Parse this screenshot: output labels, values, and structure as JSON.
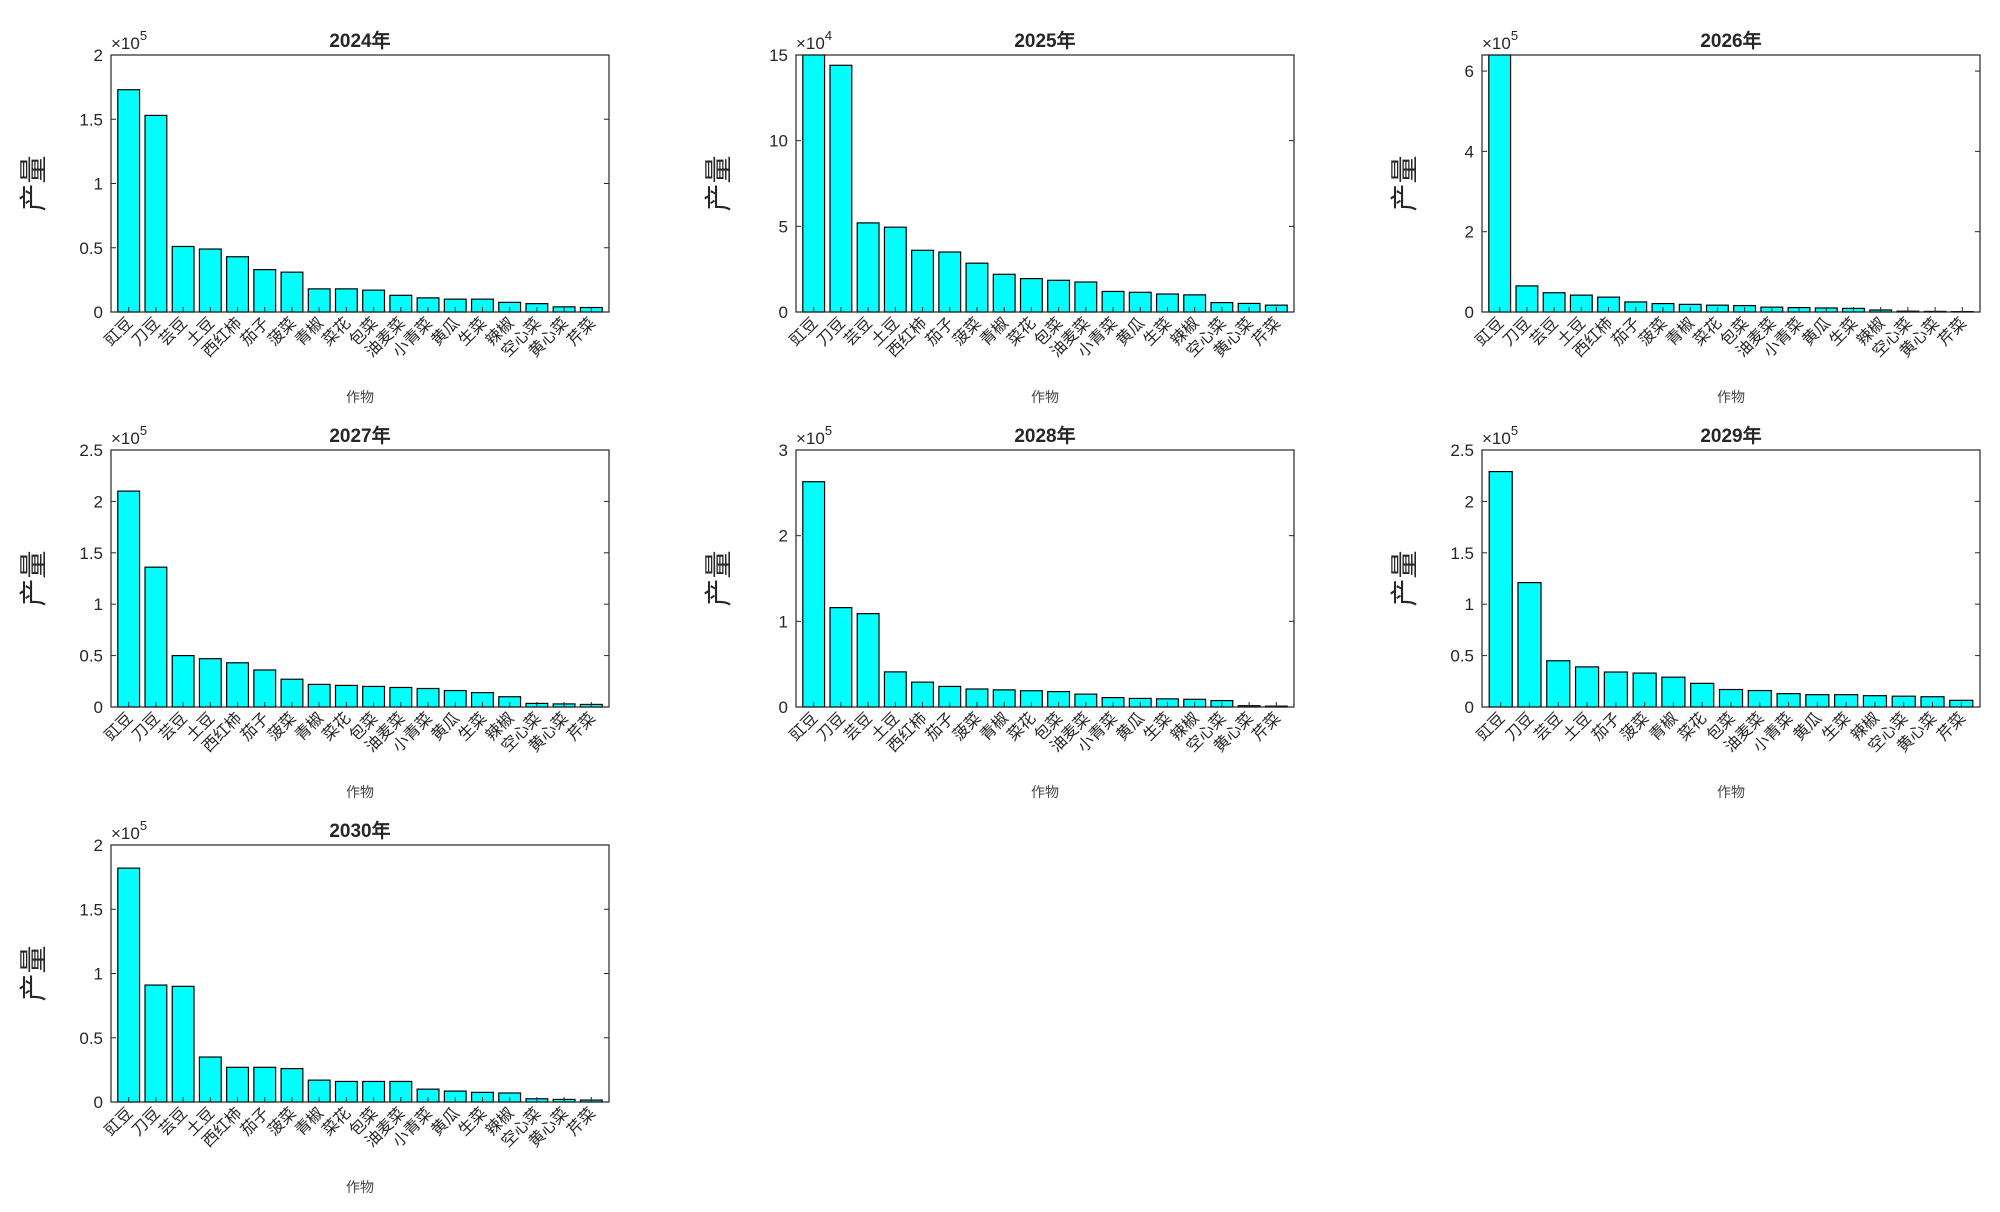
{
  "colors": {
    "bar_fill": "#00ffff",
    "bar_stroke": "#000000",
    "axis": "#262626"
  },
  "chart_data": [
    {
      "type": "bar",
      "title": "2024年",
      "xlabel": "作物",
      "ylabel": "产量",
      "exponent": "5",
      "exponent_base": "×10",
      "ylim": [
        0,
        2
      ],
      "yticks": [
        0,
        0.5,
        1,
        1.5,
        2
      ],
      "ytick_labels": [
        "0",
        "0.5",
        "1",
        "1.5",
        "2"
      ],
      "categories": [
        "豇豆",
        "刀豆",
        "芸豆",
        "土豆",
        "西红柿",
        "茄子",
        "菠菜",
        "青椒",
        "菜花",
        "包菜",
        "油麦菜",
        "小青菜",
        "黄瓜",
        "生菜",
        "辣椒",
        "空心菜",
        "黄心菜",
        "芹菜"
      ],
      "values": [
        1.73,
        1.53,
        0.51,
        0.49,
        0.43,
        0.33,
        0.31,
        0.18,
        0.18,
        0.17,
        0.13,
        0.11,
        0.1,
        0.1,
        0.075,
        0.065,
        0.04,
        0.035
      ]
    },
    {
      "type": "bar",
      "title": "2025年",
      "xlabel": "作物",
      "ylabel": "产量",
      "exponent": "4",
      "exponent_base": "×10",
      "ylim": [
        0,
        15
      ],
      "yticks": [
        0,
        5,
        10,
        15
      ],
      "ytick_labels": [
        "0",
        "5",
        "10",
        "15"
      ],
      "categories": [
        "豇豆",
        "刀豆",
        "芸豆",
        "土豆",
        "西红柿",
        "茄子",
        "菠菜",
        "青椒",
        "菜花",
        "包菜",
        "油麦菜",
        "小青菜",
        "黄瓜",
        "生菜",
        "辣椒",
        "空心菜",
        "黄心菜",
        "芹菜"
      ],
      "values": [
        15.2,
        14.4,
        5.2,
        4.95,
        3.6,
        3.5,
        2.85,
        2.2,
        1.95,
        1.85,
        1.75,
        1.2,
        1.15,
        1.05,
        1.0,
        0.55,
        0.5,
        0.4
      ]
    },
    {
      "type": "bar",
      "title": "2026年",
      "xlabel": "作物",
      "ylabel": "产量",
      "exponent": "5",
      "exponent_base": "×10",
      "ylim": [
        0,
        6.4
      ],
      "yticks": [
        0,
        2,
        4,
        6
      ],
      "ytick_labels": [
        "0",
        "2",
        "4",
        "6"
      ],
      "categories": [
        "豇豆",
        "刀豆",
        "芸豆",
        "土豆",
        "西红柿",
        "茄子",
        "菠菜",
        "青椒",
        "菜花",
        "包菜",
        "油麦菜",
        "小青菜",
        "黄瓜",
        "生菜",
        "辣椒",
        "空心菜",
        "黄心菜",
        "芹菜"
      ],
      "values": [
        6.45,
        0.65,
        0.48,
        0.42,
        0.37,
        0.25,
        0.21,
        0.19,
        0.17,
        0.16,
        0.12,
        0.11,
        0.1,
        0.09,
        0.05,
        0.02,
        0.015,
        0.01
      ]
    },
    {
      "type": "bar",
      "title": "2027年",
      "xlabel": "作物",
      "ylabel": "产量",
      "exponent": "5",
      "exponent_base": "×10",
      "ylim": [
        0,
        2.5
      ],
      "yticks": [
        0,
        0.5,
        1,
        1.5,
        2,
        2.5
      ],
      "ytick_labels": [
        "0",
        "0.5",
        "1",
        "1.5",
        "2",
        "2.5"
      ],
      "categories": [
        "豇豆",
        "刀豆",
        "芸豆",
        "土豆",
        "西红柿",
        "茄子",
        "菠菜",
        "青椒",
        "菜花",
        "包菜",
        "油麦菜",
        "小青菜",
        "黄瓜",
        "生菜",
        "辣椒",
        "空心菜",
        "黄心菜",
        "芹菜"
      ],
      "values": [
        2.1,
        1.36,
        0.5,
        0.47,
        0.43,
        0.36,
        0.27,
        0.22,
        0.21,
        0.2,
        0.19,
        0.18,
        0.16,
        0.14,
        0.1,
        0.035,
        0.03,
        0.025
      ]
    },
    {
      "type": "bar",
      "title": "2028年",
      "xlabel": "作物",
      "ylabel": "产量",
      "exponent": "5",
      "exponent_base": "×10",
      "ylim": [
        0,
        3
      ],
      "yticks": [
        0,
        1,
        2,
        3
      ],
      "ytick_labels": [
        "0",
        "1",
        "2",
        "3"
      ],
      "categories": [
        "豇豆",
        "刀豆",
        "芸豆",
        "土豆",
        "西红柿",
        "茄子",
        "菠菜",
        "青椒",
        "菜花",
        "包菜",
        "油麦菜",
        "小青菜",
        "黄瓜",
        "生菜",
        "辣椒",
        "空心菜",
        "黄心菜",
        "芹菜"
      ],
      "values": [
        2.63,
        1.16,
        1.09,
        0.41,
        0.29,
        0.24,
        0.21,
        0.2,
        0.19,
        0.18,
        0.15,
        0.11,
        0.1,
        0.095,
        0.09,
        0.075,
        0.015,
        0.01
      ]
    },
    {
      "type": "bar",
      "title": "2029年",
      "xlabel": "作物",
      "ylabel": "产量",
      "exponent": "5",
      "exponent_base": "×10",
      "ylim": [
        0,
        2.5
      ],
      "yticks": [
        0,
        0.5,
        1,
        1.5,
        2,
        2.5
      ],
      "ytick_labels": [
        "0",
        "0.5",
        "1",
        "1.5",
        "2",
        "2.5"
      ],
      "categories": [
        "豇豆",
        "刀豆",
        "芸豆",
        "土豆",
        "茄子",
        "菠菜",
        "青椒",
        "菜花",
        "包菜",
        "油麦菜",
        "小青菜",
        "黄瓜",
        "生菜",
        "辣椒",
        "空心菜",
        "黄心菜",
        "芹菜"
      ],
      "values": [
        2.29,
        1.21,
        0.45,
        0.39,
        0.34,
        0.33,
        0.29,
        0.23,
        0.17,
        0.16,
        0.13,
        0.12,
        0.12,
        0.11,
        0.105,
        0.1,
        0.065
      ]
    },
    {
      "type": "bar",
      "title": "2030年",
      "xlabel": "作物",
      "ylabel": "产量",
      "exponent": "5",
      "exponent_base": "×10",
      "ylim": [
        0,
        2
      ],
      "yticks": [
        0,
        0.5,
        1,
        1.5,
        2
      ],
      "ytick_labels": [
        "0",
        "0.5",
        "1",
        "1.5",
        "2"
      ],
      "categories": [
        "豇豆",
        "刀豆",
        "芸豆",
        "土豆",
        "西红柿",
        "茄子",
        "菠菜",
        "青椒",
        "菜花",
        "包菜",
        "油麦菜",
        "小青菜",
        "黄瓜",
        "生菜",
        "辣椒",
        "空心菜",
        "黄心菜",
        "芹菜"
      ],
      "values": [
        1.82,
        0.91,
        0.9,
        0.35,
        0.27,
        0.27,
        0.26,
        0.17,
        0.16,
        0.16,
        0.16,
        0.1,
        0.085,
        0.075,
        0.07,
        0.025,
        0.02,
        0.015
      ]
    }
  ]
}
